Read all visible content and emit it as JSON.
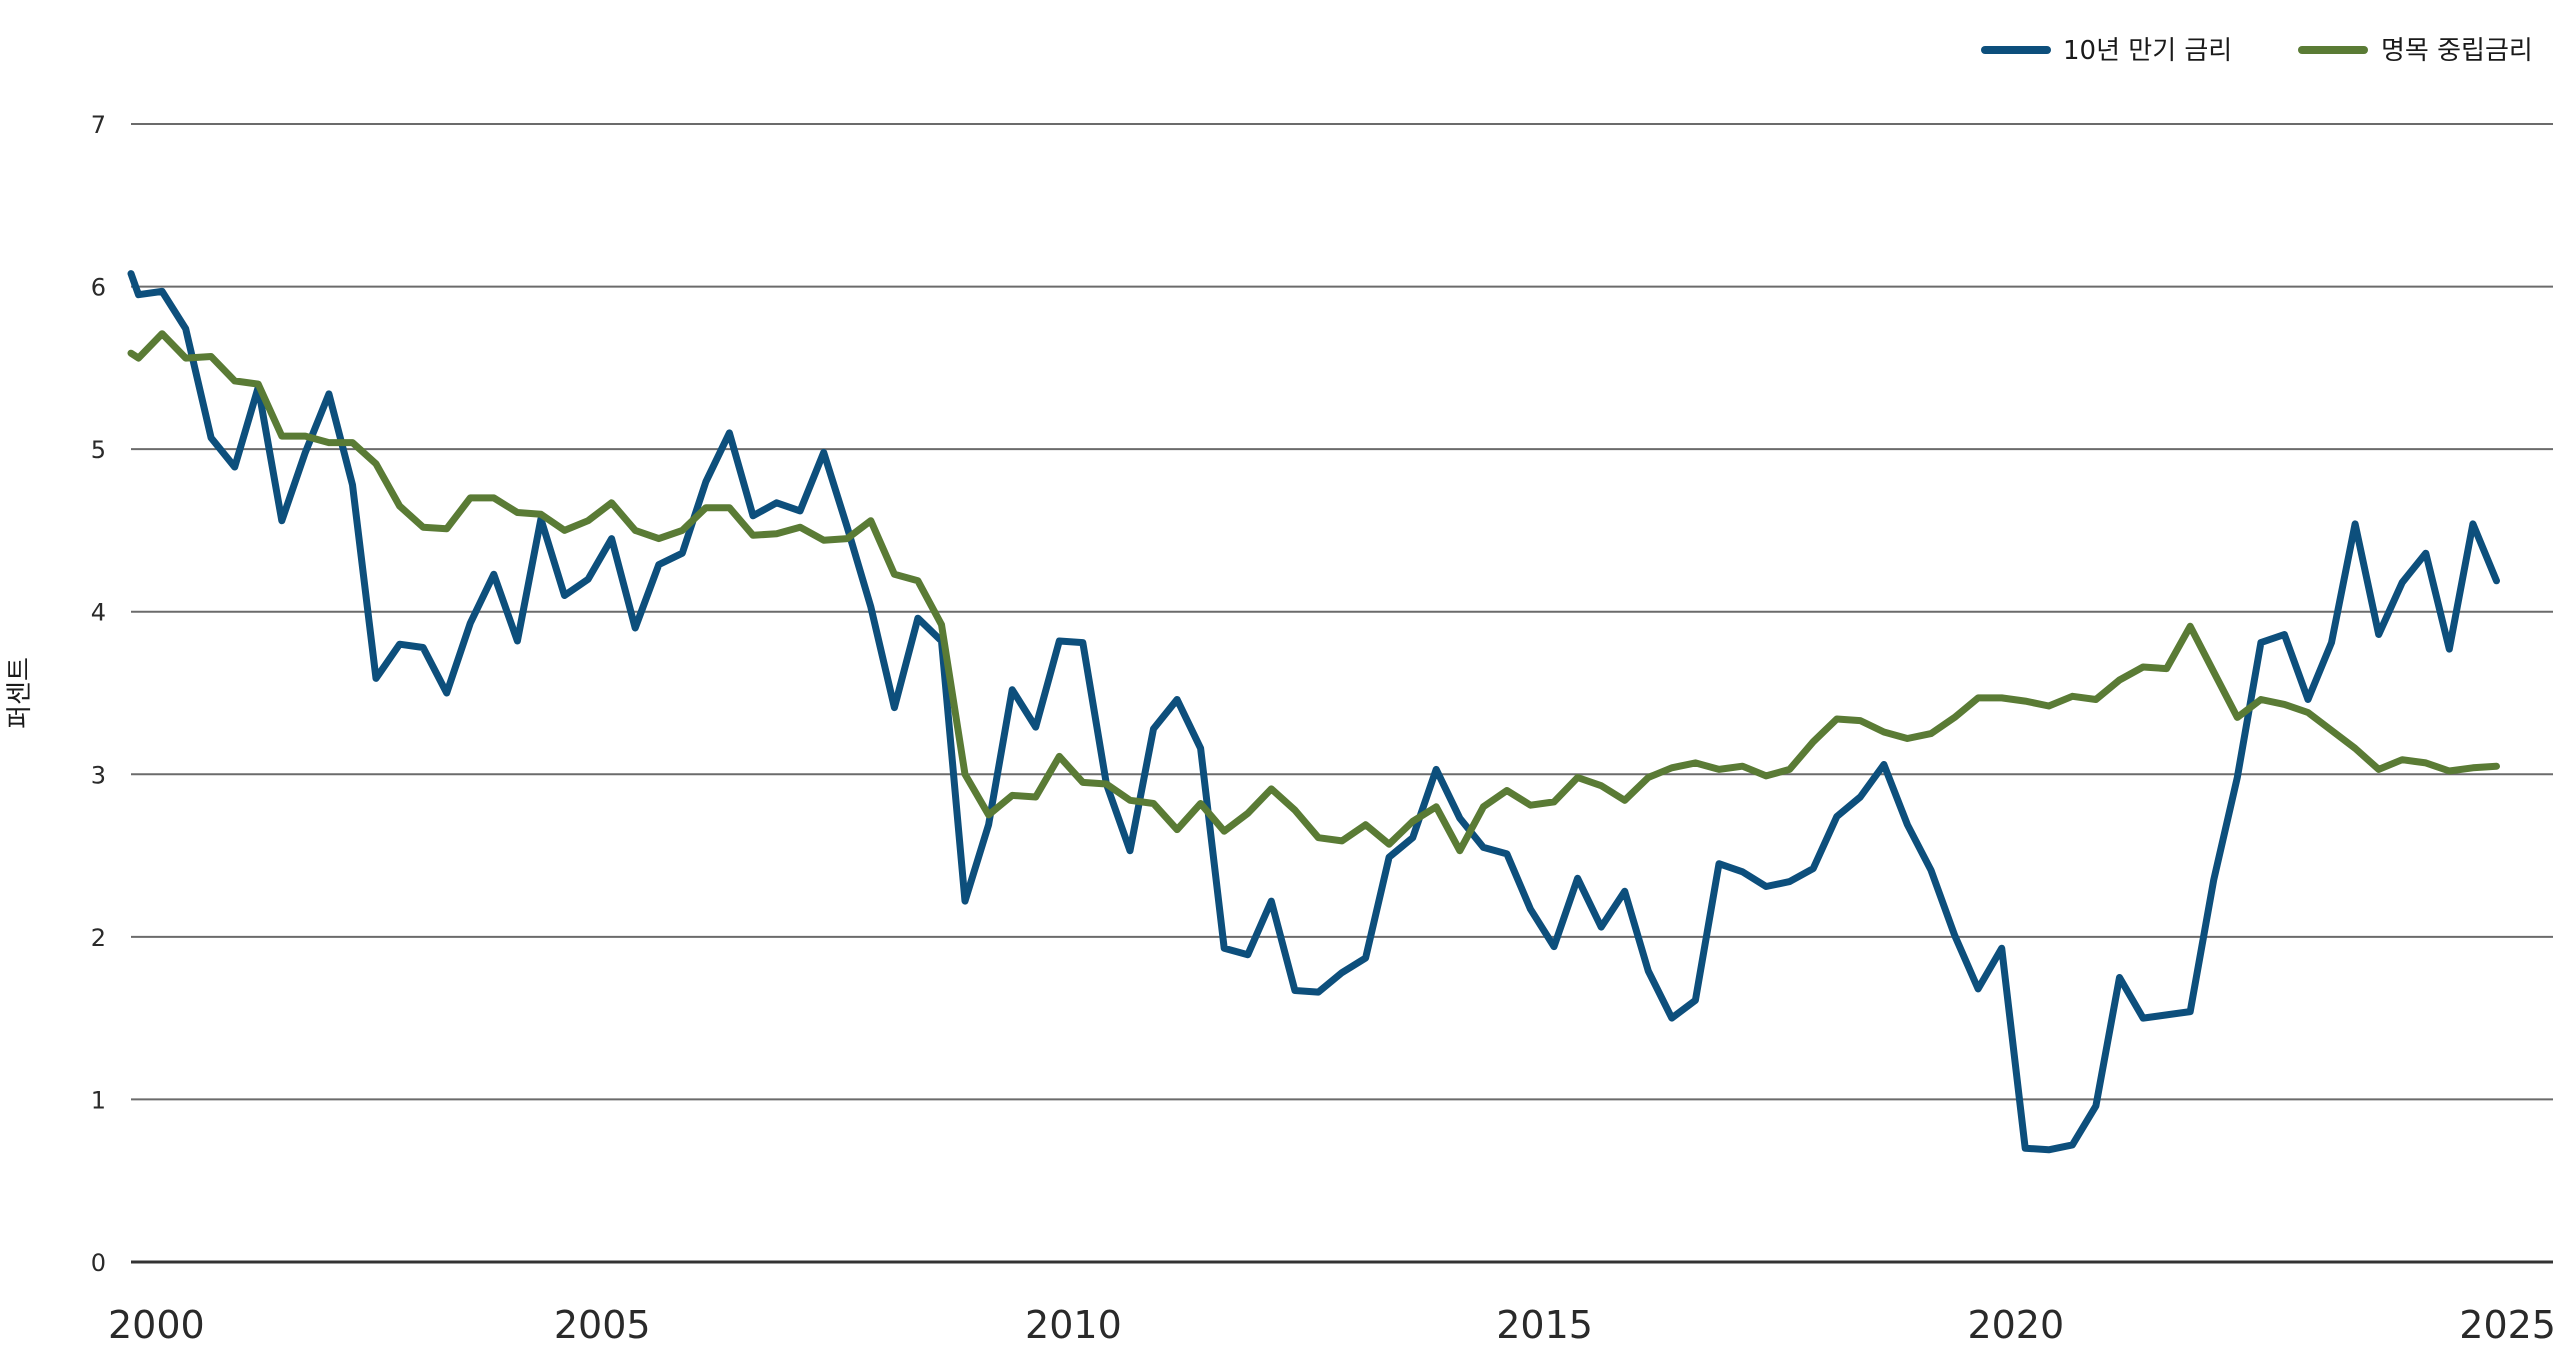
{
  "chart_data": {
    "type": "line",
    "title": "",
    "xlabel": "",
    "ylabel": "퍼센트",
    "xlim": [
      2000,
      2025.7
    ],
    "ylim": [
      0,
      7
    ],
    "x_ticks": [
      "2000",
      "2005",
      "2010",
      "2015",
      "2020",
      "2025"
    ],
    "y_ticks": [
      "0",
      "1",
      "2",
      "3",
      "4",
      "5",
      "6",
      "7"
    ],
    "grid": true,
    "legend_position": "top-right",
    "series": [
      {
        "name": "10년 만기 금리",
        "color": "#0d4f7c",
        "points": [
          [
            2000.0,
            6.08
          ],
          [
            2000.08,
            5.95
          ],
          [
            2000.33,
            5.97
          ],
          [
            2000.58,
            5.74
          ],
          [
            2000.85,
            5.07
          ],
          [
            2001.1,
            4.89
          ],
          [
            2001.35,
            5.38
          ],
          [
            2001.6,
            4.56
          ],
          [
            2001.85,
            4.98
          ],
          [
            2002.1,
            5.34
          ],
          [
            2002.35,
            4.78
          ],
          [
            2002.6,
            3.59
          ],
          [
            2002.85,
            3.8
          ],
          [
            2003.1,
            3.78
          ],
          [
            2003.35,
            3.5
          ],
          [
            2003.6,
            3.93
          ],
          [
            2003.85,
            4.23
          ],
          [
            2004.1,
            3.82
          ],
          [
            2004.35,
            4.57
          ],
          [
            2004.6,
            4.1
          ],
          [
            2004.85,
            4.2
          ],
          [
            2005.1,
            4.45
          ],
          [
            2005.35,
            3.9
          ],
          [
            2005.6,
            4.29
          ],
          [
            2005.85,
            4.36
          ],
          [
            2006.1,
            4.8
          ],
          [
            2006.35,
            5.1
          ],
          [
            2006.6,
            4.59
          ],
          [
            2006.85,
            4.67
          ],
          [
            2007.1,
            4.62
          ],
          [
            2007.35,
            4.98
          ],
          [
            2007.6,
            4.52
          ],
          [
            2007.85,
            4.03
          ],
          [
            2008.1,
            3.41
          ],
          [
            2008.35,
            3.96
          ],
          [
            2008.6,
            3.82
          ],
          [
            2008.85,
            2.22
          ],
          [
            2009.1,
            2.69
          ],
          [
            2009.35,
            3.52
          ],
          [
            2009.6,
            3.29
          ],
          [
            2009.85,
            3.82
          ],
          [
            2010.1,
            3.81
          ],
          [
            2010.35,
            2.94
          ],
          [
            2010.6,
            2.53
          ],
          [
            2010.85,
            3.28
          ],
          [
            2011.1,
            3.46
          ],
          [
            2011.35,
            3.16
          ],
          [
            2011.6,
            1.93
          ],
          [
            2011.85,
            1.89
          ],
          [
            2012.1,
            2.22
          ],
          [
            2012.35,
            1.67
          ],
          [
            2012.6,
            1.66
          ],
          [
            2012.85,
            1.78
          ],
          [
            2013.1,
            1.87
          ],
          [
            2013.35,
            2.49
          ],
          [
            2013.6,
            2.61
          ],
          [
            2013.85,
            3.03
          ],
          [
            2014.1,
            2.73
          ],
          [
            2014.35,
            2.55
          ],
          [
            2014.6,
            2.51
          ],
          [
            2014.85,
            2.17
          ],
          [
            2015.1,
            1.94
          ],
          [
            2015.35,
            2.36
          ],
          [
            2015.6,
            2.06
          ],
          [
            2015.85,
            2.28
          ],
          [
            2016.1,
            1.79
          ],
          [
            2016.35,
            1.5
          ],
          [
            2016.6,
            1.61
          ],
          [
            2016.85,
            2.45
          ],
          [
            2017.1,
            2.4
          ],
          [
            2017.35,
            2.31
          ],
          [
            2017.6,
            2.34
          ],
          [
            2017.85,
            2.42
          ],
          [
            2018.1,
            2.74
          ],
          [
            2018.35,
            2.86
          ],
          [
            2018.6,
            3.06
          ],
          [
            2018.85,
            2.69
          ],
          [
            2019.1,
            2.41
          ],
          [
            2019.35,
            2.01
          ],
          [
            2019.6,
            1.68
          ],
          [
            2019.85,
            1.93
          ],
          [
            2020.1,
            0.7
          ],
          [
            2020.35,
            0.69
          ],
          [
            2020.6,
            0.72
          ],
          [
            2020.85,
            0.96
          ],
          [
            2021.1,
            1.75
          ],
          [
            2021.35,
            1.5
          ],
          [
            2021.6,
            1.52
          ],
          [
            2021.85,
            1.54
          ],
          [
            2022.1,
            2.35
          ],
          [
            2022.35,
            2.98
          ],
          [
            2022.6,
            3.81
          ],
          [
            2022.85,
            3.86
          ],
          [
            2023.1,
            3.46
          ],
          [
            2023.35,
            3.81
          ],
          [
            2023.6,
            4.54
          ],
          [
            2023.85,
            3.86
          ],
          [
            2024.1,
            4.18
          ],
          [
            2024.35,
            4.36
          ],
          [
            2024.6,
            3.77
          ],
          [
            2024.85,
            4.54
          ],
          [
            2025.1,
            4.19
          ]
        ]
      },
      {
        "name": "명목 중립금리",
        "color": "#5a7b35",
        "points": [
          [
            2000.0,
            5.59
          ],
          [
            2000.08,
            5.56
          ],
          [
            2000.33,
            5.71
          ],
          [
            2000.58,
            5.56
          ],
          [
            2000.85,
            5.57
          ],
          [
            2001.1,
            5.42
          ],
          [
            2001.35,
            5.4
          ],
          [
            2001.6,
            5.08
          ],
          [
            2001.85,
            5.08
          ],
          [
            2002.1,
            5.04
          ],
          [
            2002.35,
            5.04
          ],
          [
            2002.6,
            4.91
          ],
          [
            2002.85,
            4.65
          ],
          [
            2003.1,
            4.52
          ],
          [
            2003.35,
            4.51
          ],
          [
            2003.6,
            4.7
          ],
          [
            2003.85,
            4.7
          ],
          [
            2004.1,
            4.61
          ],
          [
            2004.35,
            4.6
          ],
          [
            2004.6,
            4.5
          ],
          [
            2004.85,
            4.56
          ],
          [
            2005.1,
            4.67
          ],
          [
            2005.35,
            4.5
          ],
          [
            2005.6,
            4.45
          ],
          [
            2005.85,
            4.5
          ],
          [
            2006.1,
            4.64
          ],
          [
            2006.35,
            4.64
          ],
          [
            2006.6,
            4.47
          ],
          [
            2006.85,
            4.48
          ],
          [
            2007.1,
            4.52
          ],
          [
            2007.35,
            4.44
          ],
          [
            2007.6,
            4.45
          ],
          [
            2007.85,
            4.56
          ],
          [
            2008.1,
            4.23
          ],
          [
            2008.35,
            4.19
          ],
          [
            2008.6,
            3.92
          ],
          [
            2008.85,
            3.0
          ],
          [
            2009.1,
            2.75
          ],
          [
            2009.35,
            2.87
          ],
          [
            2009.6,
            2.86
          ],
          [
            2009.85,
            3.11
          ],
          [
            2010.1,
            2.95
          ],
          [
            2010.35,
            2.94
          ],
          [
            2010.6,
            2.84
          ],
          [
            2010.85,
            2.82
          ],
          [
            2011.1,
            2.66
          ],
          [
            2011.35,
            2.82
          ],
          [
            2011.6,
            2.65
          ],
          [
            2011.85,
            2.76
          ],
          [
            2012.1,
            2.91
          ],
          [
            2012.35,
            2.78
          ],
          [
            2012.6,
            2.61
          ],
          [
            2012.85,
            2.59
          ],
          [
            2013.1,
            2.69
          ],
          [
            2013.35,
            2.57
          ],
          [
            2013.6,
            2.71
          ],
          [
            2013.85,
            2.8
          ],
          [
            2014.1,
            2.53
          ],
          [
            2014.35,
            2.8
          ],
          [
            2014.6,
            2.9
          ],
          [
            2014.85,
            2.81
          ],
          [
            2015.1,
            2.83
          ],
          [
            2015.35,
            2.98
          ],
          [
            2015.6,
            2.93
          ],
          [
            2015.85,
            2.84
          ],
          [
            2016.1,
            2.98
          ],
          [
            2016.35,
            3.04
          ],
          [
            2016.6,
            3.07
          ],
          [
            2016.85,
            3.03
          ],
          [
            2017.1,
            3.05
          ],
          [
            2017.35,
            2.99
          ],
          [
            2017.6,
            3.03
          ],
          [
            2017.85,
            3.2
          ],
          [
            2018.1,
            3.34
          ],
          [
            2018.35,
            3.33
          ],
          [
            2018.6,
            3.26
          ],
          [
            2018.85,
            3.22
          ],
          [
            2019.1,
            3.25
          ],
          [
            2019.35,
            3.35
          ],
          [
            2019.6,
            3.47
          ],
          [
            2019.85,
            3.47
          ],
          [
            2020.1,
            3.45
          ],
          [
            2020.35,
            3.42
          ],
          [
            2020.6,
            3.48
          ],
          [
            2020.85,
            3.46
          ],
          [
            2021.1,
            3.58
          ],
          [
            2021.35,
            3.66
          ],
          [
            2021.6,
            3.65
          ],
          [
            2021.85,
            3.91
          ],
          [
            2022.1,
            3.63
          ],
          [
            2022.35,
            3.35
          ],
          [
            2022.6,
            3.46
          ],
          [
            2022.85,
            3.43
          ],
          [
            2023.1,
            3.38
          ],
          [
            2023.35,
            3.27
          ],
          [
            2023.6,
            3.16
          ],
          [
            2023.85,
            3.03
          ],
          [
            2024.1,
            3.09
          ],
          [
            2024.35,
            3.07
          ],
          [
            2024.6,
            3.02
          ],
          [
            2024.85,
            3.04
          ],
          [
            2025.1,
            3.05
          ]
        ]
      }
    ]
  }
}
